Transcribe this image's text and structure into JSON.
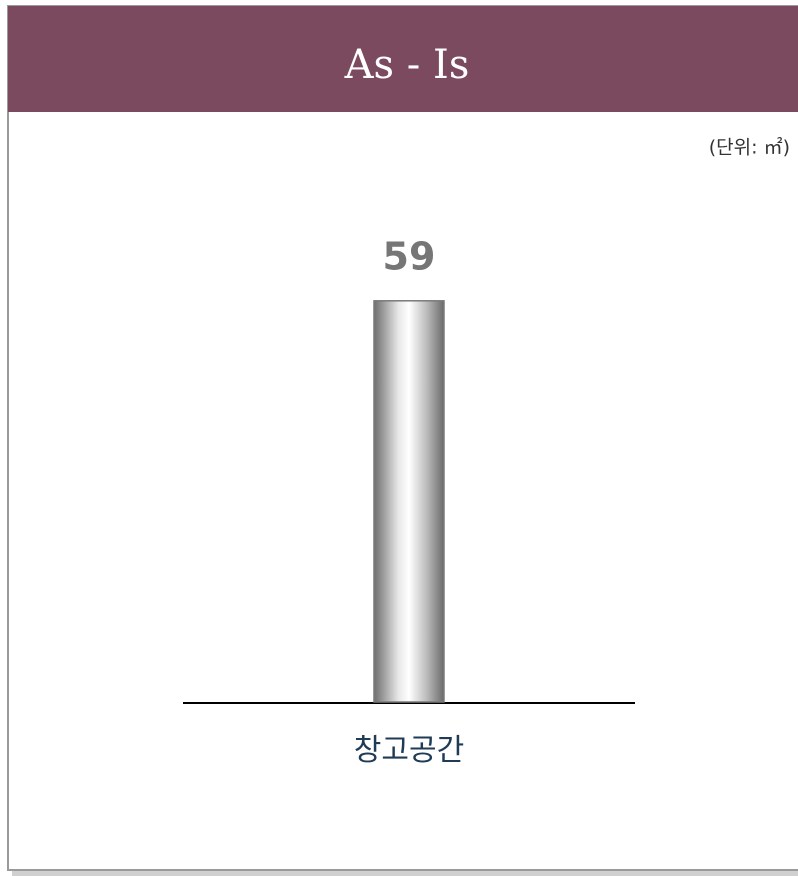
{
  "chart_data": {
    "type": "bar",
    "title": "As - Is",
    "unit_note": "(단위: ㎡)",
    "categories": [
      "창고공간"
    ],
    "values": [
      59
    ],
    "color": "#c8c8c8",
    "ylim": [
      0,
      70
    ]
  }
}
